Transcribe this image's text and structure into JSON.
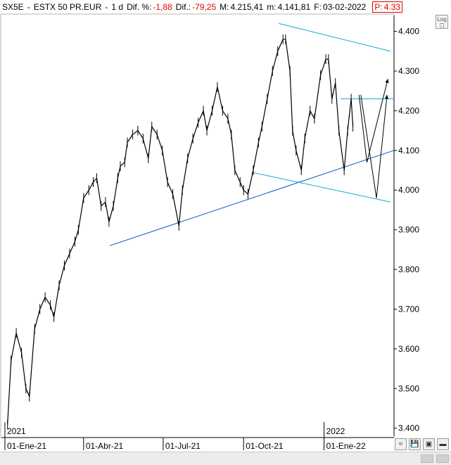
{
  "header": {
    "symbol": "SX5E",
    "name": "ESTX 50 PR.EUR",
    "interval": "1 d",
    "dif_pct_label": "Dif. %:",
    "dif_pct_value": "-1,88",
    "dif_label": "Dif.:",
    "dif_value": "-79,25",
    "high_label": "M:",
    "high_value": "4.215,41",
    "low_label": "m:",
    "low_value": "4.141,81",
    "date_label": "F:",
    "date_value": "03-02-2022",
    "price_label": "P:",
    "price_value": "4.33"
  },
  "log_button": "Log",
  "colors": {
    "trend_blue": "#0055c8",
    "channel_cyan": "#1aa6d6",
    "price": "#000000",
    "negative": "#e00000"
  },
  "chart_data": {
    "type": "line",
    "ylim": [
      3380,
      4440
    ],
    "y_ticks": [
      "4.400",
      "4.300",
      "4.200",
      "4.100",
      "4.000",
      "3.900",
      "3.800",
      "3.700",
      "3.600",
      "3.500",
      "3.400"
    ],
    "y_tick_values": [
      4400,
      4300,
      4200,
      4100,
      4000,
      3900,
      3800,
      3700,
      3600,
      3500,
      3400
    ],
    "x_range": [
      "2020-12-28",
      "2022-03-22"
    ],
    "x_ticks": [
      {
        "label": "01-Ene-21",
        "date": "2021-01-01"
      },
      {
        "label": "01-Abr-21",
        "date": "2021-04-01"
      },
      {
        "label": "01-Jul-21",
        "date": "2021-07-01"
      },
      {
        "label": "01-Oct-21",
        "date": "2021-10-01"
      },
      {
        "label": "01-Ene-22",
        "date": "2022-01-01"
      }
    ],
    "year_markers": [
      {
        "label": "2021",
        "date": "2021-01-01"
      },
      {
        "label": "2022",
        "date": "2022-01-01"
      }
    ],
    "series": [
      {
        "x": [
          "2021-01-04",
          "2021-01-08",
          "2021-01-14",
          "2021-01-20",
          "2021-01-25",
          "2021-01-29",
          "2021-02-04",
          "2021-02-10",
          "2021-02-16",
          "2021-02-22",
          "2021-02-26",
          "2021-03-04",
          "2021-03-10",
          "2021-03-16",
          "2021-03-22",
          "2021-03-26",
          "2021-04-01",
          "2021-04-07",
          "2021-04-12",
          "2021-04-16",
          "2021-04-21",
          "2021-04-26",
          "2021-04-30",
          "2021-05-05",
          "2021-05-10",
          "2021-05-13",
          "2021-05-18",
          "2021-05-21",
          "2021-05-27",
          "2021-06-02",
          "2021-06-08",
          "2021-06-14",
          "2021-06-18",
          "2021-06-24",
          "2021-06-30",
          "2021-07-06",
          "2021-07-12",
          "2021-07-19",
          "2021-07-23",
          "2021-07-29",
          "2021-08-04",
          "2021-08-10",
          "2021-08-16",
          "2021-08-20",
          "2021-08-26",
          "2021-09-01",
          "2021-09-07",
          "2021-09-13",
          "2021-09-17",
          "2021-09-21",
          "2021-09-27",
          "2021-10-01",
          "2021-10-06",
          "2021-10-12",
          "2021-10-18",
          "2021-10-22",
          "2021-10-28",
          "2021-11-03",
          "2021-11-09",
          "2021-11-15",
          "2021-11-18",
          "2021-11-23",
          "2021-11-26",
          "2021-11-30",
          "2021-12-06",
          "2021-12-10",
          "2021-12-16",
          "2021-12-21",
          "2021-12-28",
          "2022-01-03",
          "2022-01-06",
          "2022-01-10",
          "2022-01-14",
          "2022-01-18",
          "2022-01-24",
          "2022-01-28",
          "2022-02-01",
          "2022-02-03"
        ],
        "y": [
          3410,
          3570,
          3640,
          3590,
          3500,
          3480,
          3650,
          3700,
          3730,
          3710,
          3680,
          3760,
          3810,
          3840,
          3870,
          3900,
          3980,
          4000,
          4020,
          4030,
          3960,
          3970,
          3920,
          3960,
          4030,
          4060,
          4070,
          4120,
          4140,
          4150,
          4130,
          4080,
          4160,
          4140,
          4100,
          4020,
          3990,
          3910,
          4000,
          4080,
          4130,
          4170,
          4200,
          4150,
          4200,
          4260,
          4200,
          4180,
          4140,
          4050,
          4020,
          4000,
          3990,
          4050,
          4120,
          4160,
          4230,
          4300,
          4350,
          4380,
          4380,
          4300,
          4150,
          4100,
          4050,
          4130,
          4200,
          4180,
          4290,
          4330,
          4330,
          4230,
          4270,
          4150,
          4050,
          4150,
          4230,
          4160
        ]
      }
    ],
    "annotations": [
      {
        "kind": "support_trendline",
        "from": [
          "2021-05-01",
          3860
        ],
        "to": [
          "2022-03-22",
          4100
        ]
      },
      {
        "kind": "channel_top",
        "from": [
          "2021-11-10",
          4420
        ],
        "to": [
          "2022-03-18",
          4350
        ]
      },
      {
        "kind": "channel_bottom",
        "from": [
          "2021-10-10",
          4045
        ],
        "to": [
          "2022-03-18",
          3970
        ]
      },
      {
        "kind": "horizontal_level",
        "from": [
          "2022-01-20",
          4230
        ],
        "to": [
          "2022-03-22",
          4230
        ]
      },
      {
        "kind": "projection_path",
        "points": [
          [
            "2022-02-10",
            4240
          ],
          [
            "2022-02-19",
            4070
          ],
          [
            "2022-03-15",
            4280
          ]
        ]
      },
      {
        "kind": "projection_path",
        "points": [
          [
            "2022-02-12",
            4240
          ],
          [
            "2022-03-02",
            3980
          ],
          [
            "2022-03-14",
            4240
          ]
        ]
      }
    ]
  }
}
